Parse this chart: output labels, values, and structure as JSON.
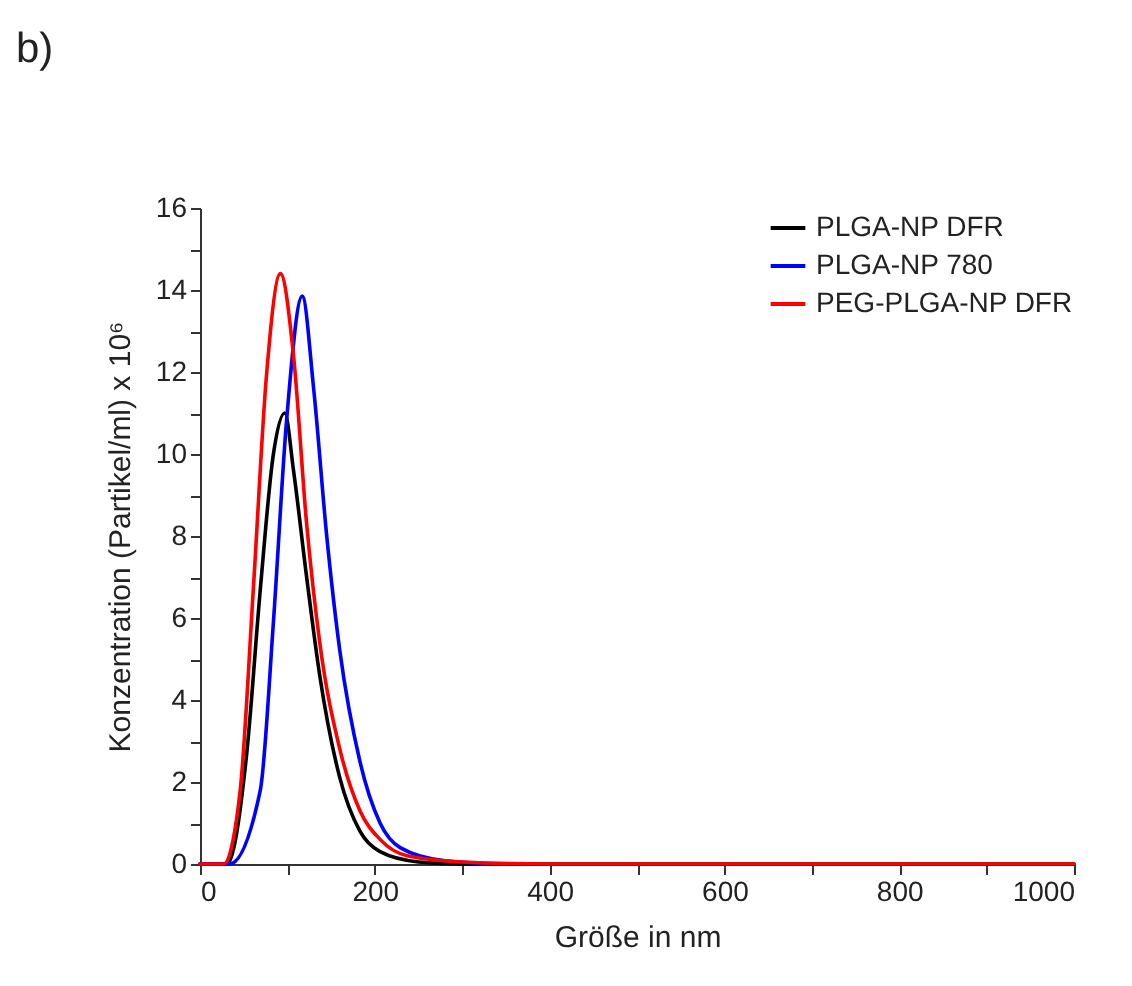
{
  "chart_data": {
    "type": "line",
    "title": "b)",
    "xlabel": "Größe in nm",
    "ylabel": "Konzentration (Partikel/ml) x 10⁶",
    "xlim": [
      0,
      1000
    ],
    "ylim": [
      0,
      16
    ],
    "xticks": [
      0,
      {
        "value": 100,
        "label": null
      },
      200,
      {
        "value": 300,
        "label": null
      },
      400,
      {
        "value": 500,
        "label": null
      },
      600,
      {
        "value": 700,
        "label": null
      },
      800,
      {
        "value": 900,
        "label": null
      },
      1000
    ],
    "yticks": [
      0,
      {
        "value": 1,
        "label": null
      },
      2,
      {
        "value": 3,
        "label": null
      },
      4,
      {
        "value": 5,
        "label": null
      },
      6,
      {
        "value": 7,
        "label": null
      },
      8,
      {
        "value": 9,
        "label": null
      },
      10,
      {
        "value": 11,
        "label": null
      },
      12,
      {
        "value": 13,
        "label": null
      },
      14,
      {
        "value": 15,
        "label": null
      },
      16
    ],
    "grid": false,
    "legend": "top right",
    "line_style": "solid",
    "marker": "none",
    "series": [
      {
        "name": "PLGA-NP DFR",
        "color": "#000000",
        "x": [
          0,
          31,
          53,
          69,
          84,
          97,
          107,
          122,
          137,
          160,
          183,
          206,
          250,
          300,
          400,
          600,
          800,
          1000
        ],
        "values": [
          0,
          0,
          2.6,
          6.7,
          10,
          11,
          9.6,
          7,
          4.6,
          2.1,
          0.8,
          0.3,
          0.05,
          0,
          0,
          0,
          0,
          0
        ]
      },
      {
        "name": "PLGA-NP 780",
        "color": "#0000ff",
        "x": [
          0,
          34,
          69,
          84,
          99,
          117,
          130,
          145,
          160,
          183,
          206,
          229,
          280,
          350
        ],
        "values": [
          0,
          0,
          1.8,
          5.9,
          10.8,
          13.85,
          11.6,
          8,
          5.2,
          2.5,
          1,
          0.4,
          0.08,
          0
        ]
      },
      {
        "name": "PEG-PLGA-NP DFR",
        "color": "#ff0000",
        "x": [
          0,
          27,
          46,
          61,
          76,
          92,
          107,
          122,
          137,
          160,
          183,
          206,
          237,
          300,
          400,
          600,
          800,
          1000
        ],
        "values": [
          0,
          0,
          1.8,
          6.7,
          11.9,
          14.4,
          12.4,
          8.3,
          5.4,
          2.8,
          1.3,
          0.6,
          0.2,
          0.05,
          0,
          0,
          0,
          0
        ]
      }
    ]
  }
}
